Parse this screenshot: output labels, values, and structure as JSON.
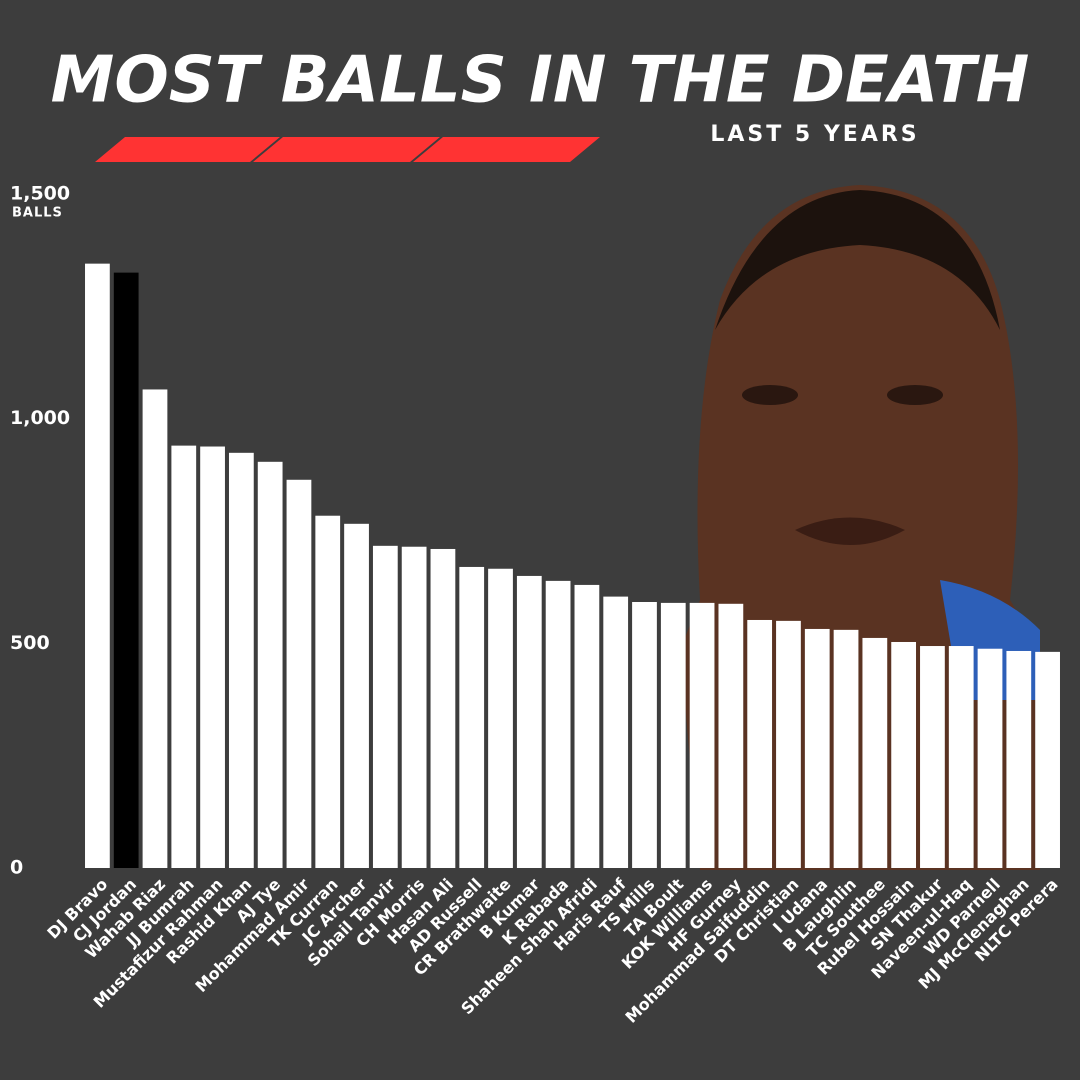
{
  "chart_data": {
    "type": "bar",
    "title": "MOST BALLS IN THE DEATH",
    "subtitle": "LAST 5 YEARS",
    "y_label": "BALLS",
    "categories": [
      "DJ Bravo",
      "CJ Jordan",
      "Wahab Riaz",
      "JJ Bumrah",
      "Mustafizur Rahman",
      "Rashid Khan",
      "AJ Tye",
      "Mohammad Amir",
      "TK Curran",
      "JC Archer",
      "Sohail Tanvir",
      "CH Morris",
      "Hasan Ali",
      "AD Russell",
      "CR Brathwaite",
      "B Kumar",
      "K Rabada",
      "Shaheen Shah Afridi",
      "Haris Rauf",
      "TS Mills",
      "TA Boult",
      "KOK Williams",
      "HF Gurney",
      "Mohammad Saifuddin",
      "DT Christian",
      "I Udana",
      "B Laughlin",
      "TC Southee",
      "Rubel Hossain",
      "SN Thakur",
      "Naveen-ul-Haq",
      "WD Parnell",
      "MJ McClenaghan",
      "NLTC Perera"
    ],
    "values": [
      1345,
      1325,
      1065,
      940,
      938,
      924,
      904,
      864,
      784,
      766,
      717,
      715,
      710,
      670,
      666,
      650,
      639,
      630,
      604,
      592,
      590,
      590,
      588,
      552,
      550,
      532,
      530,
      512,
      503,
      494,
      494,
      488,
      483,
      481
    ],
    "colors": [
      "#ffffff",
      "#000000",
      "#ffffff",
      "#ffffff",
      "#ffffff",
      "#ffffff",
      "#ffffff",
      "#ffffff",
      "#ffffff",
      "#ffffff",
      "#ffffff",
      "#ffffff",
      "#ffffff",
      "#ffffff",
      "#ffffff",
      "#ffffff",
      "#ffffff",
      "#ffffff",
      "#ffffff",
      "#ffffff",
      "#ffffff",
      "#ffffff",
      "#ffffff",
      "#ffffff",
      "#ffffff",
      "#ffffff",
      "#ffffff",
      "#ffffff",
      "#ffffff",
      "#ffffff",
      "#ffffff",
      "#ffffff",
      "#ffffff",
      "#ffffff"
    ],
    "ylim": [
      0,
      1500
    ],
    "yticks": [
      0,
      500,
      {
        "value": 1000,
        "label": "1,000"
      },
      {
        "value": 1500,
        "label": "1,500"
      }
    ],
    "grid": false
  }
}
